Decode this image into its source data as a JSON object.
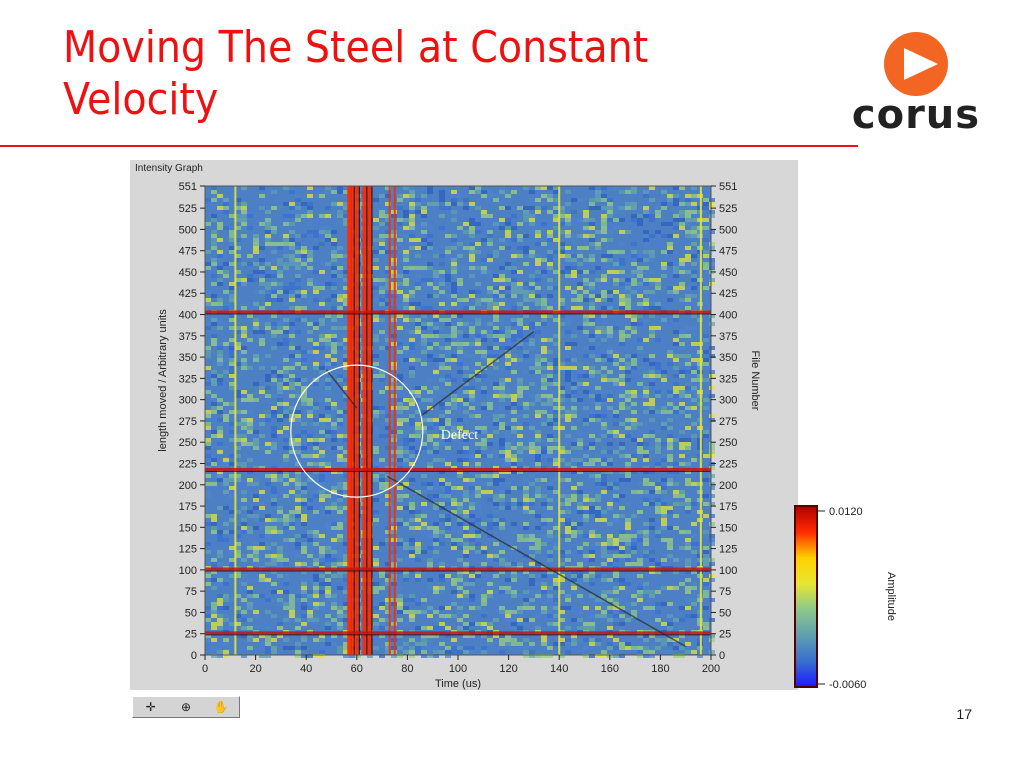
{
  "slide": {
    "title_line1": "Moving The Steel at Constant",
    "title_line2": "Velocity",
    "page_number": "17",
    "logo_text": "corus",
    "accent_color": "#ee1111"
  },
  "toolbar": {
    "icons": [
      "cursor-crosshair-icon",
      "zoom-icon",
      "pan-hand-icon"
    ]
  },
  "chart_data": {
    "type": "heatmap",
    "title": "Intensity Graph",
    "xlabel": "Time (us)",
    "ylabel": "length moved / Arbitrary units",
    "y2label": "File Number",
    "colorbar_label": "Amplitude",
    "xlim": [
      0,
      200
    ],
    "ylim": [
      0,
      551
    ],
    "x_ticks": [
      0,
      20,
      40,
      60,
      80,
      100,
      120,
      140,
      160,
      180,
      200
    ],
    "y_ticks": [
      0,
      25,
      50,
      75,
      100,
      125,
      150,
      175,
      200,
      225,
      250,
      275,
      300,
      325,
      350,
      375,
      400,
      425,
      450,
      475,
      500,
      525,
      551
    ],
    "colorbar_range": [
      -0.006,
      0.012
    ],
    "colorbar_tick_labels": [
      "0.0120",
      "-0.0060"
    ],
    "colors": [
      "#1a1aff",
      "#3a6fd0",
      "#5f9fb0",
      "#8dc88a",
      "#e6e633",
      "#ffd000",
      "#ff2a00",
      "#b00000"
    ],
    "strong_vertical_bands_us": [
      12,
      57,
      58,
      60,
      63,
      65,
      73,
      75,
      140,
      196
    ],
    "strong_horizontal_bands": [
      403,
      218,
      101,
      26
    ],
    "defect_circle": {
      "cx": 60,
      "cy": 263,
      "r": 52
    },
    "annotation": "Defect"
  }
}
